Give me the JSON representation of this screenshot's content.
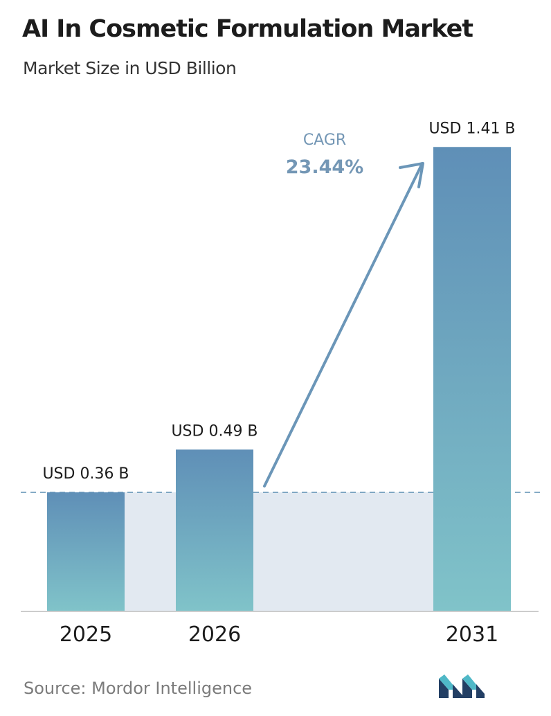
{
  "header": {
    "title": "AI In Cosmetic Formulation Market",
    "subtitle": "Market Size in USD Billion"
  },
  "chart_data": {
    "type": "bar",
    "categories": [
      "2025",
      "2026",
      "2031"
    ],
    "values": [
      0.36,
      0.49,
      1.41
    ],
    "value_labels": [
      "USD 0.36 B",
      "USD 0.49 B",
      "USD 1.41 B"
    ],
    "title": "AI In Cosmetic Formulation Market",
    "subtitle": "Market Size in USD Billion",
    "xlabel": "",
    "ylabel": "",
    "ylim": [
      0,
      1.52
    ],
    "grid": false,
    "legend": "none",
    "reference_line": {
      "value": 0.36,
      "style": "dashed"
    },
    "annotation": {
      "label": "CAGR",
      "value": "23.44%"
    }
  },
  "source": {
    "text": "Source: Mordor Intelligence"
  },
  "colors": {
    "bar_top": "#5f8fb7",
    "bar_bottom": "#80c3c9",
    "band_fill": "#e2e9f1",
    "arrow": "#6b96b8",
    "cagr_label": "#7497b5",
    "dashed_line": "#5d8fb3",
    "axis": "#cccccc",
    "logo_dark": "#233f64",
    "logo_teal": "#4fb8c7"
  },
  "logo": {
    "name": "mordor-intelligence-logo"
  }
}
